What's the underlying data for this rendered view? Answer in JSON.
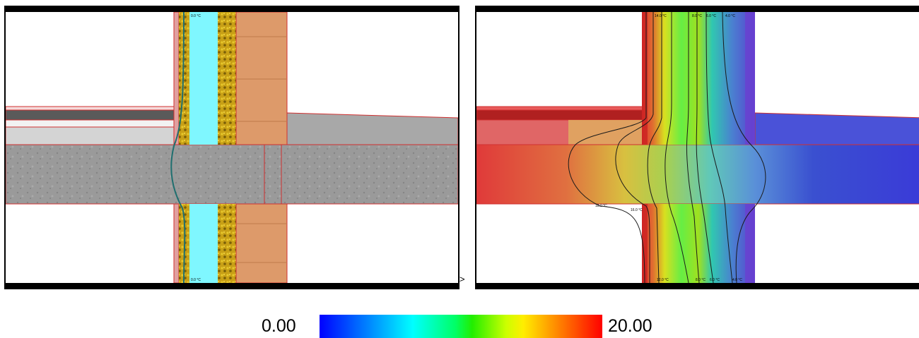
{
  "panels": {
    "left": {
      "scale_tag": "",
      "top_label": "0.0 °C",
      "bottom_label": "0.0 °C"
    },
    "right": {
      "scale_tag": "",
      "isotherm_labels": [
        "18.0 °C",
        "16.0 °C"
      ],
      "top_labels": [
        "14.0 °C",
        "8.0 °C",
        "6.0 °C",
        "4.0 °C"
      ],
      "bottom_labels": [
        "12.0 °C",
        "8.0 °C",
        "6.0 °C",
        "4.0 °C"
      ]
    }
  },
  "legend": {
    "min_label": "0.00",
    "max_label": "20.00",
    "colors": [
      "#0000ff",
      "#00ffff",
      "#00ff66",
      "#ffee00",
      "#ff0000"
    ]
  },
  "arrow_glyph": ">",
  "materials": {
    "concrete": "#9a9a9a",
    "insulation": "#c8a016",
    "air_gap": "#7ff7ff",
    "brick": "#dd9a6a",
    "screed": "#5a5a5a",
    "outline": "#d03030"
  }
}
